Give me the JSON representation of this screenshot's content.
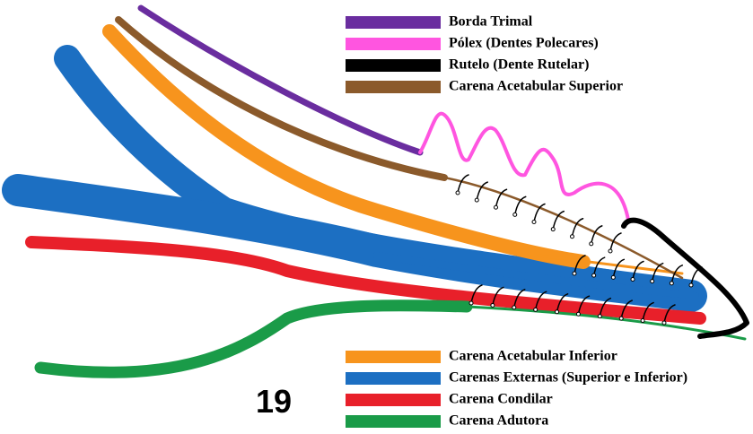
{
  "figure_number": "19",
  "legend_top": [
    {
      "label": "Borda Trimal",
      "color": "#6a2d9f"
    },
    {
      "label": "Pólex (Dentes Polecares)",
      "color": "#ff55e0"
    },
    {
      "label": "Rutelo (Dente Rutelar)",
      "color": "#000000"
    },
    {
      "label": "Carena Acetabular Superior",
      "color": "#8b5a2b"
    }
  ],
  "legend_bottom": [
    {
      "label": "Carena Acetabular Inferior",
      "color": "#f7941d"
    },
    {
      "label": "Carenas Externas (Superior e Inferior)",
      "color": "#1c6fc2"
    },
    {
      "label": "Carena Condilar",
      "color": "#e8202a"
    },
    {
      "label": "Carena Adutora",
      "color": "#1a9b48"
    }
  ]
}
